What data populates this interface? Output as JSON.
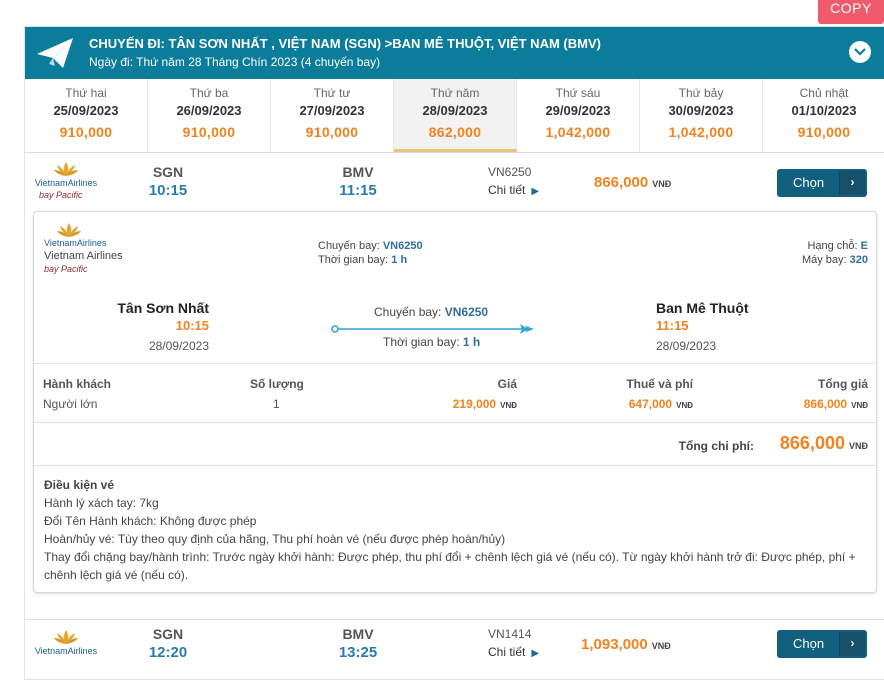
{
  "copy_label": "COPY",
  "header": {
    "title": "CHUYẾN ĐI: TÂN SƠN NHẤT , VIỆT NAM (SGN) >BAN MÊ THUỘT, VIỆT NAM (BMV)",
    "date_line": "Ngày đi: Thứ năm 28 Tháng Chín 2023 (4 chuyến bay)"
  },
  "days": [
    {
      "name": "Thứ hai",
      "date": "25/09/2023",
      "price": "910,000"
    },
    {
      "name": "Thứ ba",
      "date": "26/09/2023",
      "price": "910,000"
    },
    {
      "name": "Thứ tư",
      "date": "27/09/2023",
      "price": "910,000"
    },
    {
      "name": "Thứ năm",
      "date": "28/09/2023",
      "price": "862,000"
    },
    {
      "name": "Thứ sáu",
      "date": "29/09/2023",
      "price": "1,042,000"
    },
    {
      "name": "Thứ bảy",
      "date": "30/09/2023",
      "price": "1,042,000"
    },
    {
      "name": "Chủ nhật",
      "date": "01/10/2023",
      "price": "910,000"
    }
  ],
  "currency": "VNĐ",
  "flights": [
    {
      "airline": "VietnamAirlines",
      "subtitle": "bay Pacific",
      "from_code": "SGN",
      "from_time": "10:15",
      "to_code": "BMV",
      "to_time": "11:15",
      "flight_no": "VN6250",
      "detail_label": "Chi tiết",
      "price": "866,000",
      "choose_label": "Chọn"
    },
    {
      "airline": "VietnamAirlines",
      "from_code": "SGN",
      "from_time": "12:20",
      "to_code": "BMV",
      "to_time": "13:25",
      "flight_no": "VN1414",
      "detail_label": "Chi tiết",
      "price": "1,093,000",
      "choose_label": "Chọn"
    }
  ],
  "details": {
    "brand": "VietnamAirlines",
    "brand_name": "Vietnam Airlines",
    "subtitle": "bay Pacific",
    "flight_label": "Chuyến bay:",
    "flight_no": "VN6250",
    "duration_label": "Thời gian bay:",
    "duration": "1 h",
    "class_label": "Hạng chỗ:",
    "class": "E",
    "aircraft_label": "Máy bay:",
    "aircraft": "320",
    "from_city": "Tân Sơn Nhất",
    "from_time": "10:15",
    "from_date": "28/09/2023",
    "to_city": "Ban Mê Thuột",
    "to_time": "11:15",
    "to_date": "28/09/2023",
    "pax_headers": {
      "passenger": "Hành khách",
      "quantity": "Số lượng",
      "price": "Giá",
      "tax": "Thuế và phí",
      "total": "Tổng giá"
    },
    "pax_row": {
      "type": "Người lớn",
      "quantity": "1",
      "price": "219,000",
      "tax": "647,000",
      "total": "866,000"
    },
    "total_label": "Tổng chi phí:",
    "total_value": "866,000",
    "conditions_title": "Điều kiện vé",
    "conditions": [
      "Hành lý xách tay: 7kg",
      "Đổi Tên Hành khách: Không được phép",
      "Hoàn/hủy vé: Tùy theo quy định của hãng, Thu phí hoàn vé (nếu được phép hoàn/hủy)",
      "Thay đổi chặng bay/hành trình: Trước ngày khởi hành: Được phép, thu phí đổi + chênh lệch giá vé (nếu có). Từ ngày khởi hành trở đi: Được phép, phí + chênh lệch giá vé (nếu có)."
    ]
  }
}
